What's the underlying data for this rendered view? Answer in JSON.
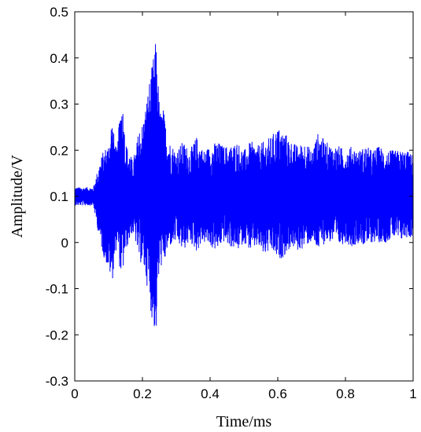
{
  "chart_data": {
    "type": "line",
    "title": "",
    "xlabel": "Time/ms",
    "ylabel": "Amplitude/V",
    "xlim": [
      0,
      1
    ],
    "ylim": [
      -0.3,
      0.5
    ],
    "x_ticks": [
      0,
      0.2,
      0.4,
      0.6,
      0.8,
      1
    ],
    "x_tick_labels": [
      "0",
      "0.2",
      "0.4",
      "0.6",
      "0.8",
      "1"
    ],
    "y_ticks": [
      -0.3,
      -0.2,
      -0.1,
      0,
      0.1,
      0.2,
      0.3,
      0.4,
      0.5
    ],
    "y_tick_labels": [
      "-0.3",
      "-0.2",
      "-0.1",
      "0",
      "0.1",
      "0.2",
      "0.3",
      "0.4",
      "0.5"
    ],
    "grid": false,
    "legend": "none",
    "series": [
      {
        "color": "#0000ff",
        "envelope": {
          "x": [
            0,
            0.055,
            0.065,
            0.075,
            0.085,
            0.1,
            0.11,
            0.115,
            0.125,
            0.135,
            0.14,
            0.15,
            0.16,
            0.17,
            0.18,
            0.19,
            0.2,
            0.21,
            0.22,
            0.23,
            0.235,
            0.24,
            0.245,
            0.25,
            0.255,
            0.26,
            0.27,
            0.28,
            0.3,
            0.32,
            0.34,
            0.36,
            0.38,
            0.4,
            0.42,
            0.44,
            0.46,
            0.48,
            0.5,
            0.52,
            0.54,
            0.56,
            0.58,
            0.6,
            0.62,
            0.64,
            0.66,
            0.68,
            0.7,
            0.72,
            0.74,
            0.76,
            0.78,
            0.8,
            0.82,
            0.84,
            0.86,
            0.88,
            0.9,
            0.92,
            0.94,
            0.96,
            0.98,
            1
          ],
          "upper": [
            0.12,
            0.12,
            0.15,
            0.18,
            0.2,
            0.22,
            0.28,
            0.24,
            0.2,
            0.3,
            0.32,
            0.22,
            0.2,
            0.18,
            0.2,
            0.25,
            0.26,
            0.3,
            0.35,
            0.39,
            0.42,
            0.44,
            0.38,
            0.3,
            0.28,
            0.3,
            0.25,
            0.22,
            0.2,
            0.22,
            0.2,
            0.23,
            0.2,
            0.21,
            0.22,
            0.21,
            0.21,
            0.22,
            0.2,
            0.22,
            0.21,
            0.22,
            0.23,
            0.25,
            0.24,
            0.22,
            0.21,
            0.22,
            0.2,
            0.24,
            0.22,
            0.21,
            0.21,
            0.2,
            0.21,
            0.2,
            0.21,
            0.2,
            0.21,
            0.2,
            0.2,
            0.2,
            0.2,
            0.19
          ],
          "lower": [
            0.08,
            0.08,
            0.04,
            0.0,
            -0.03,
            -0.06,
            -0.09,
            -0.06,
            0.0,
            -0.07,
            -0.08,
            -0.02,
            0.0,
            0.02,
            0.0,
            -0.04,
            -0.05,
            -0.08,
            -0.12,
            -0.18,
            -0.19,
            -0.22,
            -0.12,
            -0.07,
            -0.05,
            -0.07,
            -0.03,
            -0.01,
            0.0,
            -0.02,
            0.0,
            -0.02,
            0.0,
            -0.01,
            -0.02,
            0.0,
            -0.01,
            -0.02,
            0.0,
            -0.02,
            -0.01,
            -0.03,
            -0.02,
            -0.04,
            -0.03,
            -0.01,
            -0.02,
            -0.01,
            0.0,
            -0.02,
            0.0,
            0.0,
            -0.01,
            0.0,
            -0.01,
            0.0,
            -0.01,
            0.0,
            0.0,
            0.0,
            0.01,
            0.0,
            0.01,
            0.01
          ]
        }
      }
    ]
  }
}
